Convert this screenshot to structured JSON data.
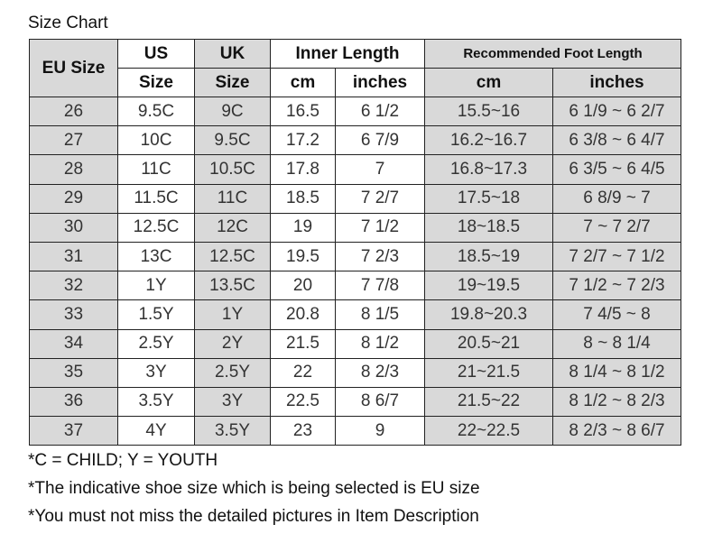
{
  "title": "Size Chart",
  "headers": {
    "eu": "EU Size",
    "us_top": "US",
    "us_bottom": "Size",
    "uk_top": "UK",
    "uk_bottom": "Size",
    "inner": "Inner Length",
    "recommended": "Recommended Foot Length",
    "cm": "cm",
    "inches": "inches"
  },
  "rows": [
    [
      "26",
      "9.5C",
      "9C",
      "16.5",
      "6 1/2",
      "15.5~16",
      "6 1/9 ~ 6 2/7"
    ],
    [
      "27",
      "10C",
      "9.5C",
      "17.2",
      "6 7/9",
      "16.2~16.7",
      "6 3/8 ~ 6 4/7"
    ],
    [
      "28",
      "11C",
      "10.5C",
      "17.8",
      "7",
      "16.8~17.3",
      "6 3/5 ~ 6 4/5"
    ],
    [
      "29",
      "11.5C",
      "11C",
      "18.5",
      "7 2/7",
      "17.5~18",
      "6 8/9 ~ 7"
    ],
    [
      "30",
      "12.5C",
      "12C",
      "19",
      "7 1/2",
      "18~18.5",
      "7 ~ 7 2/7"
    ],
    [
      "31",
      "13C",
      "12.5C",
      "19.5",
      "7 2/3",
      "18.5~19",
      "7 2/7 ~ 7 1/2"
    ],
    [
      "32",
      "1Y",
      "13.5C",
      "20",
      "7 7/8",
      "19~19.5",
      "7 1/2 ~ 7 2/3"
    ],
    [
      "33",
      "1.5Y",
      "1Y",
      "20.8",
      "8 1/5",
      "19.8~20.3",
      "7 4/5 ~ 8"
    ],
    [
      "34",
      "2.5Y",
      "2Y",
      "21.5",
      "8 1/2",
      "20.5~21",
      "8 ~ 8 1/4"
    ],
    [
      "35",
      "3Y",
      "2.5Y",
      "22",
      "8 2/3",
      "21~21.5",
      "8 1/4 ~ 8 1/2"
    ],
    [
      "36",
      "3.5Y",
      "3Y",
      "22.5",
      "8 6/7",
      "21.5~22",
      "8 1/2 ~ 8 2/3"
    ],
    [
      "37",
      "4Y",
      "3.5Y",
      "23",
      "9",
      "22~22.5",
      "8 2/3 ~ 8 6/7"
    ]
  ],
  "notes": [
    "*C = CHILD; Y = YOUTH",
    "*The indicative shoe size which is being selected is EU size",
    "*You must not miss the detailed pictures in Item Description"
  ],
  "colors": {
    "shaded": "#d9d9d9",
    "border": "#222222"
  }
}
